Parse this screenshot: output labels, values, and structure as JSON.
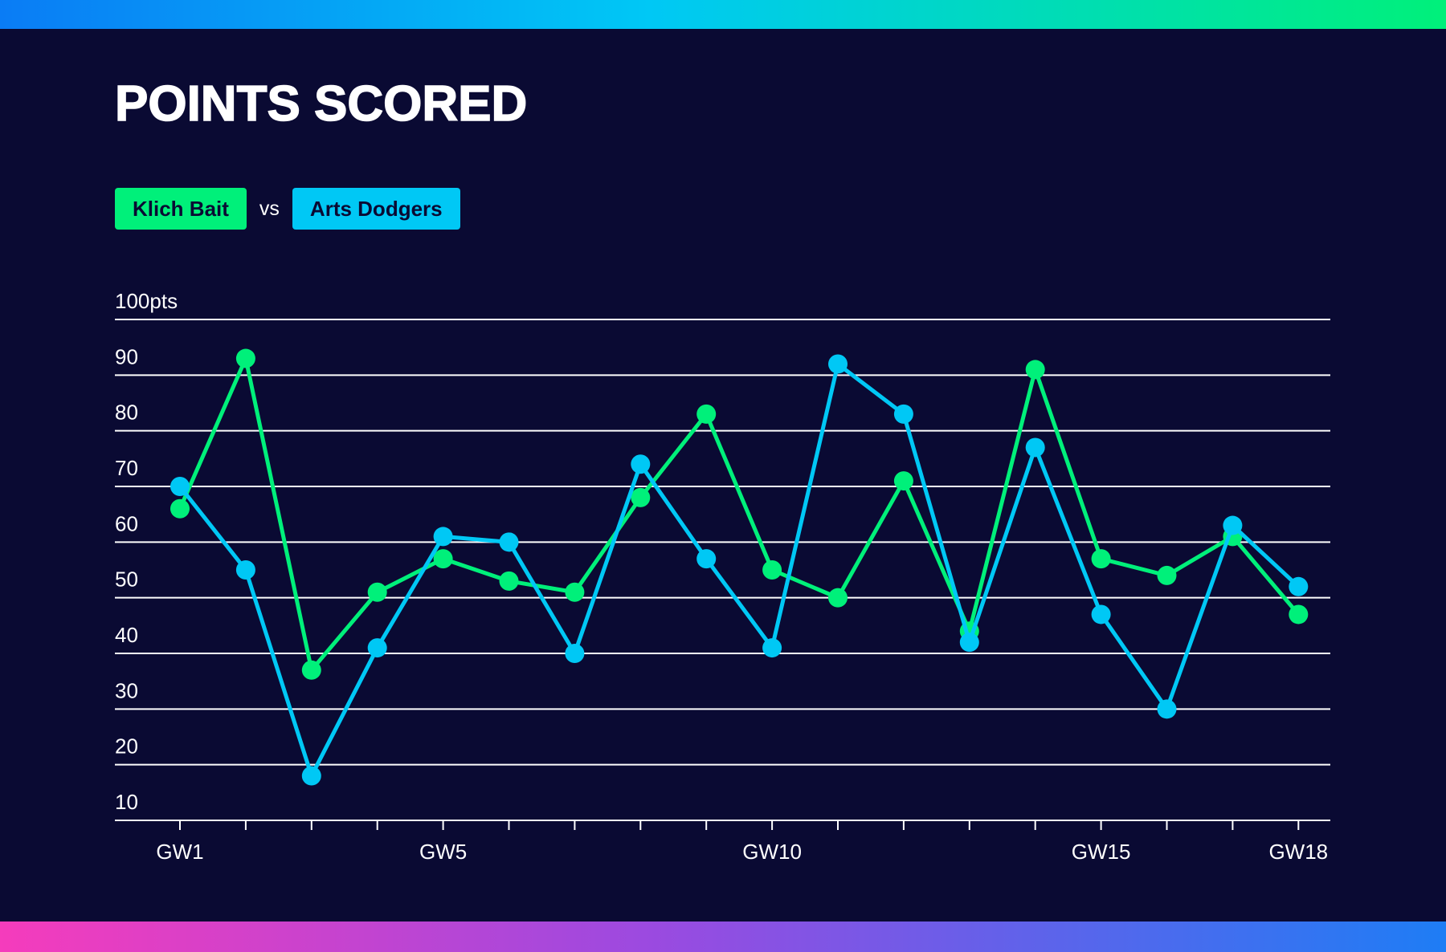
{
  "title": "POINTS SCORED",
  "legend": {
    "vs_label": "vs"
  },
  "colors": {
    "background": "#0a0a33",
    "gridline": "#ffffff"
  },
  "chart_data": {
    "type": "line",
    "title": "POINTS SCORED",
    "y_unit_label": "100pts",
    "ylim": [
      10,
      100
    ],
    "y_ticks": [
      {
        "value": 100,
        "label": "100pts"
      },
      {
        "value": 90,
        "label": "90"
      },
      {
        "value": 80,
        "label": "80"
      },
      {
        "value": 70,
        "label": "70"
      },
      {
        "value": 60,
        "label": "60"
      },
      {
        "value": 50,
        "label": "50"
      },
      {
        "value": 40,
        "label": "40"
      },
      {
        "value": 30,
        "label": "30"
      },
      {
        "value": 20,
        "label": "20"
      },
      {
        "value": 10,
        "label": "10"
      }
    ],
    "x": [
      "GW1",
      "GW2",
      "GW3",
      "GW4",
      "GW5",
      "GW6",
      "GW7",
      "GW8",
      "GW9",
      "GW10",
      "GW11",
      "GW12",
      "GW13",
      "GW14",
      "GW15",
      "GW16",
      "GW17",
      "GW18"
    ],
    "x_tick_labels": [
      {
        "index": 0,
        "label": "GW1"
      },
      {
        "index": 4,
        "label": "GW5"
      },
      {
        "index": 9,
        "label": "GW10"
      },
      {
        "index": 14,
        "label": "GW15"
      },
      {
        "index": 17,
        "label": "GW18"
      }
    ],
    "grid": true,
    "legend_position": "top-left",
    "series": [
      {
        "name": "Klich Bait",
        "color": "#00f07a",
        "values": [
          66,
          93,
          37,
          51,
          57,
          53,
          51,
          68,
          83,
          55,
          50,
          71,
          44,
          91,
          57,
          54,
          61,
          47
        ]
      },
      {
        "name": "Arts Dodgers",
        "color": "#00c8f5",
        "values": [
          70,
          55,
          18,
          41,
          61,
          60,
          40,
          74,
          57,
          41,
          92,
          83,
          42,
          77,
          47,
          30,
          63,
          52
        ]
      }
    ]
  }
}
